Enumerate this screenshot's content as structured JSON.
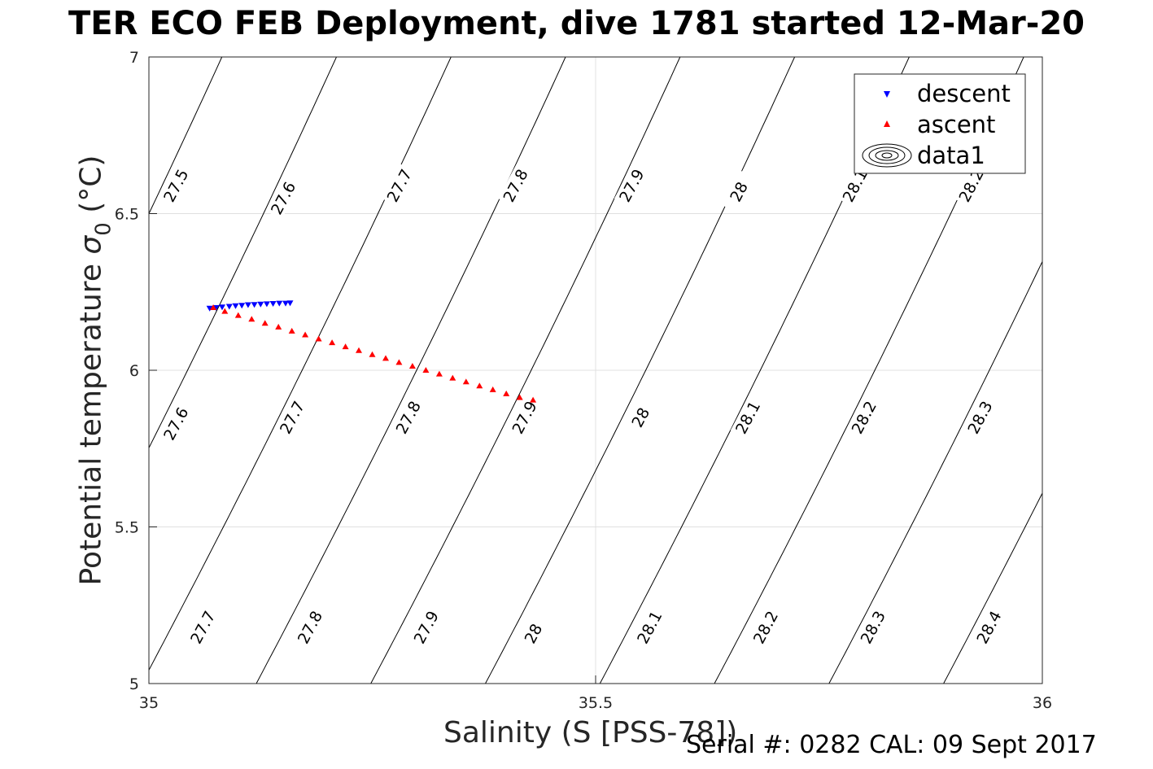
{
  "title": "TER ECO FEB Deployment, dive 1781 started 12-Mar-20",
  "serial_text": "Serial #: 0282  CAL: 09 Sept 2017",
  "chart_data": {
    "type": "scatter",
    "xlabel": "Salinity (S [PSS-78])",
    "ylabel_main": "Potential temperature ",
    "ylabel_sigma": "σ",
    "ylabel_sub": "0",
    "ylabel_unit": " (°C)",
    "xlim": [
      35,
      36
    ],
    "ylim": [
      5,
      7
    ],
    "xticks": [
      35,
      35.5,
      36
    ],
    "xtick_labels": [
      "35",
      "35.5",
      "36"
    ],
    "yticks": [
      5,
      5.5,
      6,
      6.5,
      7
    ],
    "ytick_labels": [
      "5",
      "5.5",
      "6",
      "6.5",
      "7"
    ],
    "grid": true,
    "legend_position": "top-right",
    "legend": [
      "descent",
      "ascent",
      "data1"
    ],
    "series": [
      {
        "name": "descent",
        "marker": "triangle-down",
        "color": "#0000ff",
        "x": [
          35.068,
          35.075,
          35.082,
          35.09,
          35.097,
          35.104,
          35.111,
          35.118,
          35.125,
          35.132,
          35.139,
          35.146,
          35.153,
          35.158
        ],
        "y": [
          6.198,
          6.2,
          6.202,
          6.204,
          6.206,
          6.207,
          6.209,
          6.21,
          6.211,
          6.212,
          6.213,
          6.214,
          6.214,
          6.215
        ]
      },
      {
        "name": "ascent",
        "marker": "triangle-up",
        "color": "#ff0000",
        "x": [
          35.072,
          35.085,
          35.1,
          35.115,
          35.13,
          35.145,
          35.16,
          35.175,
          35.19,
          35.205,
          35.22,
          35.235,
          35.25,
          35.265,
          35.28,
          35.295,
          35.31,
          35.325,
          35.34,
          35.355,
          35.37,
          35.385,
          35.4,
          35.415,
          35.43
        ],
        "y": [
          6.2,
          6.188,
          6.175,
          6.163,
          6.15,
          6.138,
          6.125,
          6.113,
          6.1,
          6.088,
          6.075,
          6.063,
          6.05,
          6.038,
          6.025,
          6.013,
          6.0,
          5.988,
          5.975,
          5.963,
          5.95,
          5.938,
          5.925,
          5.913,
          5.905
        ]
      }
    ],
    "contours": {
      "name": "data1",
      "color": "#000000",
      "levels": [
        27.5,
        27.6,
        27.7,
        27.8,
        27.9,
        28,
        28.1,
        28.2,
        28.3,
        28.4
      ],
      "labels": [
        {
          "text": "27.5",
          "s": 35.03,
          "t": 6.59
        },
        {
          "text": "27.6",
          "s": 35.15,
          "t": 6.55
        },
        {
          "text": "27.7",
          "s": 35.28,
          "t": 6.59
        },
        {
          "text": "27.8",
          "s": 35.41,
          "t": 6.59
        },
        {
          "text": "27.9",
          "s": 35.54,
          "t": 6.59
        },
        {
          "text": "28",
          "s": 35.66,
          "t": 6.57
        },
        {
          "text": "28.1",
          "s": 35.79,
          "t": 6.59
        },
        {
          "text": "28.2",
          "s": 35.92,
          "t": 6.59
        },
        {
          "text": "27.6",
          "s": 35.03,
          "t": 5.83
        },
        {
          "text": "27.7",
          "s": 35.16,
          "t": 5.85
        },
        {
          "text": "27.8",
          "s": 35.29,
          "t": 5.85
        },
        {
          "text": "27.9",
          "s": 35.42,
          "t": 5.85
        },
        {
          "text": "28",
          "s": 35.55,
          "t": 5.85
        },
        {
          "text": "28.1",
          "s": 35.67,
          "t": 5.85
        },
        {
          "text": "28.2",
          "s": 35.8,
          "t": 5.85
        },
        {
          "text": "28.3",
          "s": 35.93,
          "t": 5.85
        },
        {
          "text": "27.7",
          "s": 35.06,
          "t": 5.18
        },
        {
          "text": "27.8",
          "s": 35.18,
          "t": 5.18
        },
        {
          "text": "27.9",
          "s": 35.31,
          "t": 5.18
        },
        {
          "text": "28",
          "s": 35.43,
          "t": 5.16
        },
        {
          "text": "28.1",
          "s": 35.56,
          "t": 5.18
        },
        {
          "text": "28.2",
          "s": 35.69,
          "t": 5.18
        },
        {
          "text": "28.3",
          "s": 35.81,
          "t": 5.18
        },
        {
          "text": "28.4",
          "s": 35.94,
          "t": 5.18
        }
      ]
    }
  }
}
